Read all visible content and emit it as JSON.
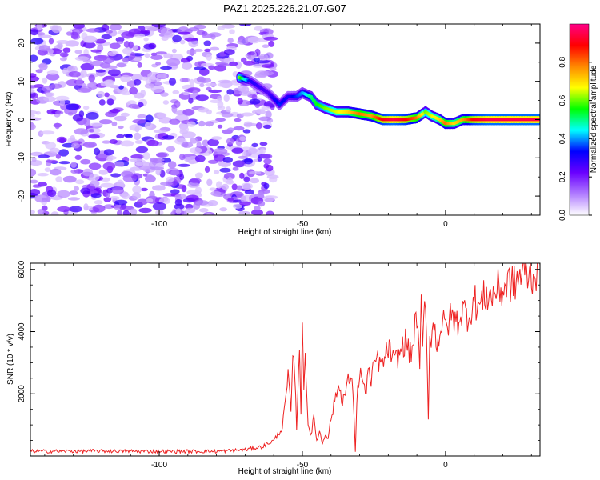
{
  "title": "PAZ1.2025.226.21.07.G07",
  "chart_data": [
    {
      "type": "heatmap",
      "xlabel": "Height of straight line (km)",
      "ylabel": "Frequency (Hz)",
      "xlim": [
        -145,
        33
      ],
      "ylim": [
        -25,
        25
      ],
      "x_ticks": [
        -100,
        -50,
        0
      ],
      "y_ticks": [
        -20,
        -10,
        0,
        10,
        20
      ],
      "colorbar": {
        "label": "Normalized spectral amplitude",
        "range": [
          0,
          1
        ],
        "ticks": [
          "0.0",
          "0.2",
          "0.4",
          "0.6",
          "0.8"
        ],
        "tick_values": [
          0.0,
          0.2,
          0.4,
          0.6,
          0.8
        ],
        "colors": [
          "#ffffff",
          "#b07cff",
          "#6a00ff",
          "#0000ff",
          "#00ffff",
          "#00ff00",
          "#ffff00",
          "#ff8800",
          "#ff0000",
          "#ff0088"
        ]
      },
      "noise_region": {
        "x_range": [
          -145,
          -60
        ],
        "amplitude": [
          0.05,
          0.3
        ]
      },
      "signal_track": {
        "x": [
          -72,
          -68,
          -62,
          -58,
          -55,
          -52,
          -50,
          -47,
          -45,
          -42,
          -38,
          -34,
          -30,
          -26,
          -22,
          -18,
          -14,
          -10,
          -7,
          -5,
          -2,
          0,
          3,
          6,
          10,
          15,
          20,
          25,
          33
        ],
        "frequency": [
          11,
          10,
          7,
          4,
          6,
          6,
          7,
          6,
          4,
          3,
          2,
          2,
          1.5,
          1,
          0,
          0,
          0,
          0.5,
          2,
          1,
          0,
          -1,
          -1,
          0,
          0,
          0,
          0,
          0,
          0
        ],
        "amplitude": [
          0.6,
          0.3,
          0.25,
          0.35,
          0.3,
          0.35,
          0.4,
          0.5,
          0.55,
          0.6,
          0.65,
          0.7,
          0.8,
          0.75,
          0.9,
          0.95,
          0.9,
          0.8,
          0.6,
          0.65,
          0.7,
          0.8,
          0.7,
          0.75,
          0.9,
          0.95,
          0.95,
          0.95,
          0.95
        ]
      }
    },
    {
      "type": "line",
      "xlabel": "Height of straight line (km)",
      "ylabel": "SNR (10 * v/v)",
      "xlim": [
        -145,
        33
      ],
      "ylim": [
        0,
        6200
      ],
      "x_ticks": [
        -100,
        -50,
        0
      ],
      "y_ticks": [
        2000,
        4000,
        6000
      ],
      "series": [
        {
          "color": "#ee2222",
          "x": [
            -145,
            -120,
            -100,
            -80,
            -70,
            -64,
            -60,
            -57,
            -55,
            -54,
            -53,
            -52,
            -51,
            -50.5,
            -50,
            -49.5,
            -49,
            -48,
            -47,
            -46,
            -45,
            -44,
            -43,
            -42,
            -41,
            -40,
            -39,
            -38,
            -37,
            -36,
            -35,
            -34,
            -33,
            -32,
            -31.5,
            -31,
            -30,
            -29,
            -28,
            -27,
            -26,
            -25,
            -24,
            -22,
            -20,
            -18,
            -16,
            -14,
            -12,
            -10,
            -9,
            -8.5,
            -8,
            -7,
            -6,
            -5.5,
            -5,
            -4,
            -3,
            -2,
            -1,
            0,
            2,
            4,
            6,
            8,
            10,
            12,
            14,
            16,
            18,
            20,
            22,
            24,
            26,
            28,
            30,
            32,
            33
          ],
          "y": [
            150,
            160,
            150,
            150,
            200,
            300,
            500,
            900,
            2500,
            1500,
            3600,
            900,
            3800,
            1200,
            4200,
            2000,
            3500,
            1000,
            700,
            1200,
            500,
            800,
            400,
            700,
            600,
            1200,
            1600,
            2100,
            2200,
            1800,
            2000,
            2400,
            2600,
            1500,
            150,
            1800,
            2700,
            2500,
            1900,
            2900,
            2200,
            3000,
            3100,
            2900,
            3500,
            3000,
            3300,
            3700,
            3200,
            4600,
            2600,
            5000,
            3500,
            5300,
            1300,
            3800,
            3900,
            4200,
            3600,
            4000,
            4300,
            4100,
            4500,
            4300,
            4700,
            4500,
            5000,
            4800,
            5200,
            5100,
            5400,
            5300,
            5600,
            5500,
            5800,
            5900,
            5800,
            6000,
            6100
          ]
        }
      ]
    }
  ]
}
